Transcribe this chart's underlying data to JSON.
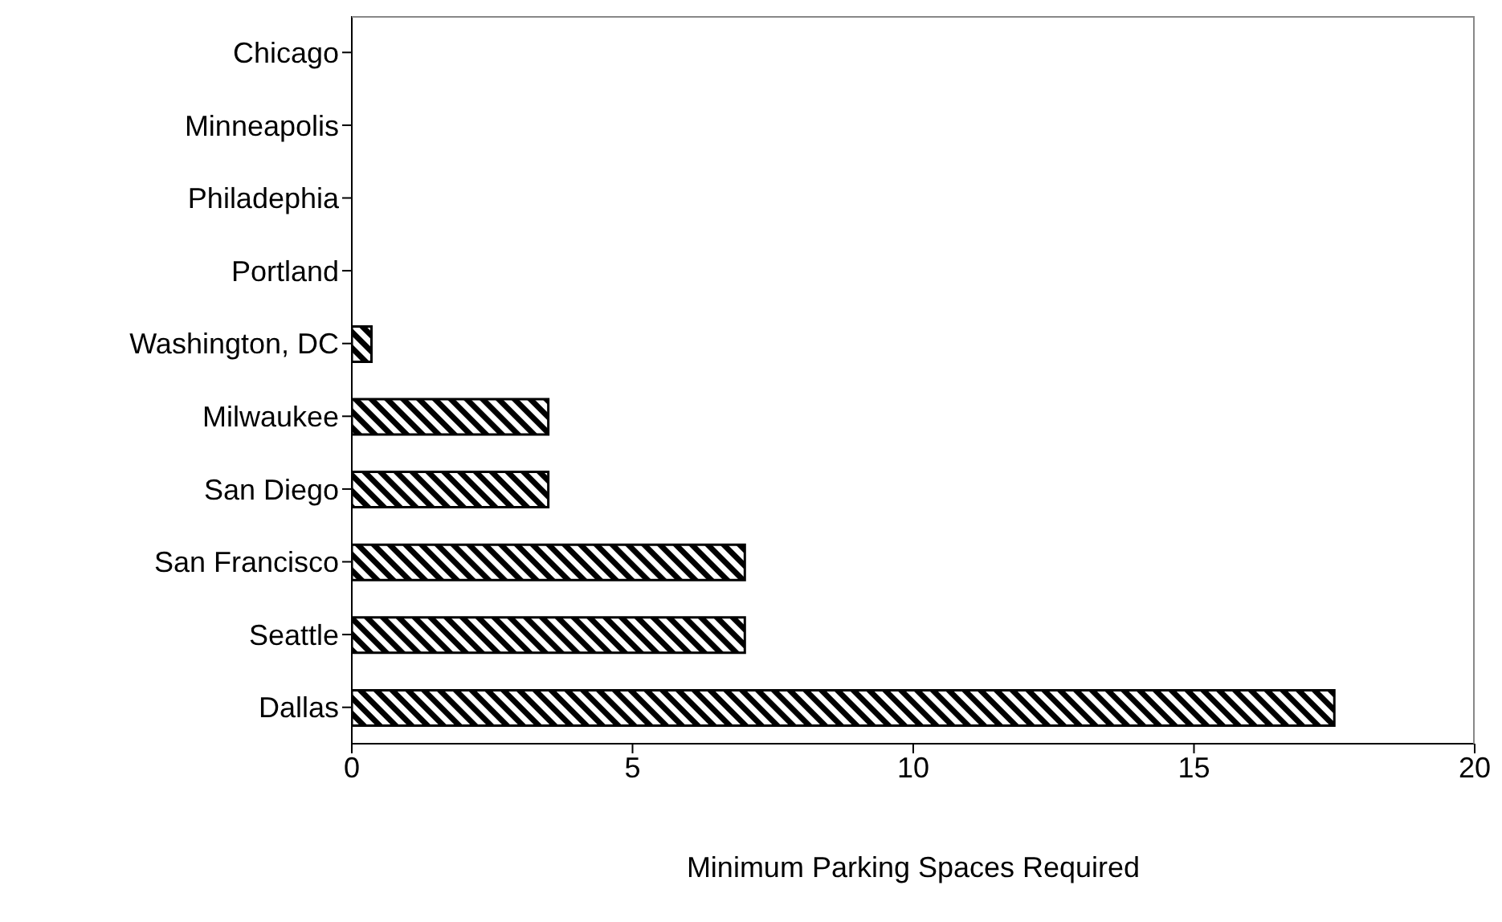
{
  "chart_data": {
    "type": "bar",
    "orientation": "horizontal",
    "xlabel": "Minimum Parking Spaces Required",
    "categories": [
      "Chicago",
      "Minneapolis",
      "Philadephia",
      "Portland",
      "Washington, DC",
      "Milwaukee",
      "San Diego",
      "San Francisco",
      "Seattle",
      "Dallas"
    ],
    "values": [
      0,
      0,
      0,
      0,
      0.35,
      3.5,
      3.5,
      7,
      7,
      17.5
    ],
    "color": "#000000",
    "xlim": [
      0,
      20
    ],
    "xticks": [
      0,
      5,
      10,
      15,
      20
    ],
    "grid": false,
    "legend": false
  }
}
